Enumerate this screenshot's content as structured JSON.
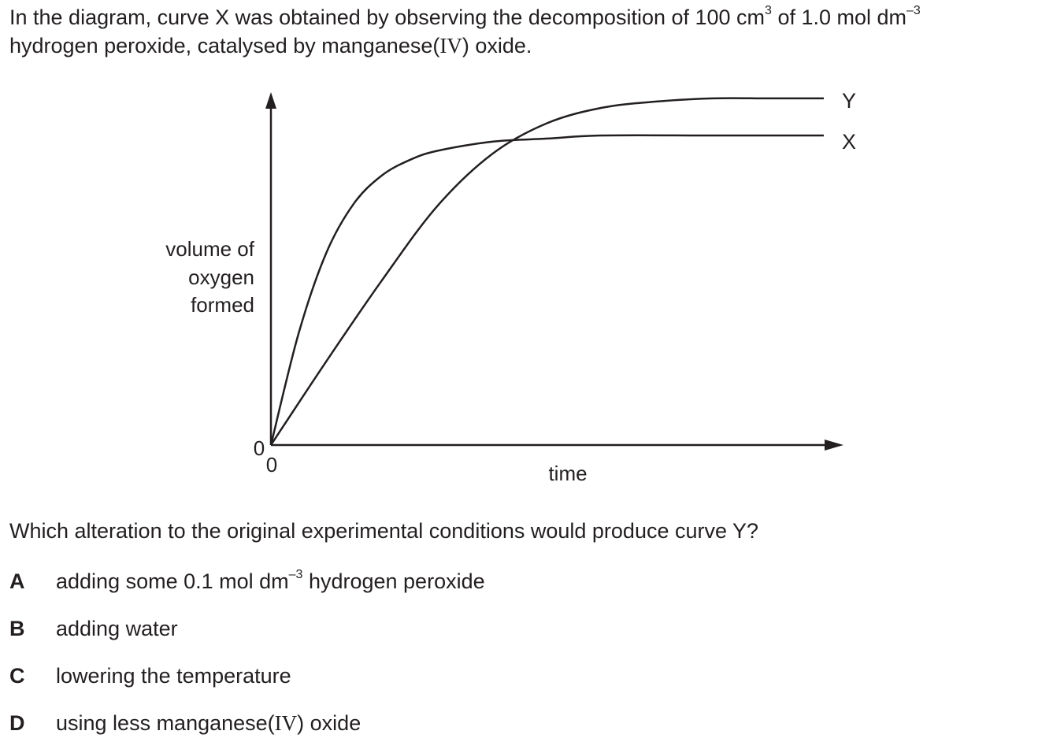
{
  "question": {
    "intro_line1_a": "In the diagram, curve X was obtained by observing the decomposition of 100 cm",
    "intro_line1_sup1": "3",
    "intro_line1_b": " of 1.0 mol dm",
    "intro_line1_sup2": "–3",
    "intro_line2_a": "hydrogen peroxide, catalysed by manganese(",
    "intro_line2_roman": "IV",
    "intro_line2_b": ") oxide.",
    "prompt": "Which alteration to the original experimental conditions would produce curve Y?"
  },
  "chart_data": {
    "type": "line",
    "xlabel": "time",
    "ylabel_lines": [
      "volume of",
      "oxygen",
      "formed"
    ],
    "x_origin_label": "0",
    "y_origin_label": "0",
    "x_ticks_shown": false,
    "y_ticks_shown": false,
    "grid": false,
    "series": [
      {
        "name": "X",
        "shape": "steep initial rise, levels off early at lower final volume",
        "x": [
          0,
          0.05,
          0.1,
          0.15,
          0.2,
          0.25,
          0.3,
          0.4,
          0.5,
          0.6,
          0.8,
          1.0
        ],
        "y": [
          0,
          0.36,
          0.62,
          0.78,
          0.87,
          0.92,
          0.95,
          0.98,
          0.99,
          1.0,
          1.0,
          1.0
        ]
      },
      {
        "name": "Y",
        "shape": "slower initial rise, levels off later at higher final volume",
        "x": [
          0,
          0.1,
          0.2,
          0.3,
          0.4,
          0.5,
          0.6,
          0.7,
          0.8,
          0.9,
          1.0
        ],
        "y": [
          0,
          0.27,
          0.53,
          0.77,
          0.94,
          1.04,
          1.09,
          1.11,
          1.12,
          1.12,
          1.12
        ]
      }
    ]
  },
  "options": [
    {
      "letter": "A",
      "text_a": "adding some 0.1 mol dm",
      "sup": "–3",
      "text_b": " hydrogen peroxide"
    },
    {
      "letter": "B",
      "text": "adding water"
    },
    {
      "letter": "C",
      "text": "lowering the temperature"
    },
    {
      "letter": "D",
      "text_a": "using less manganese(",
      "roman": "IV",
      "text_b": ") oxide"
    }
  ]
}
